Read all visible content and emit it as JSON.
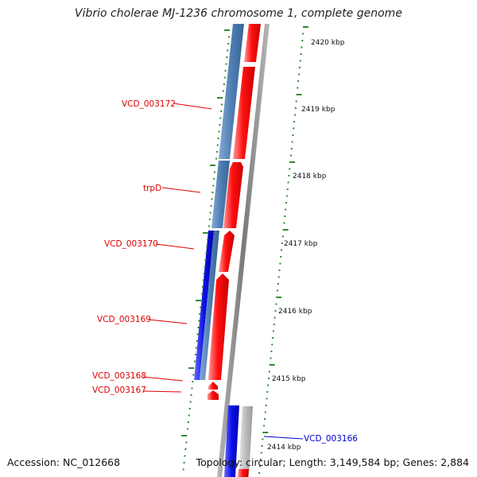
{
  "title": "Vibrio cholerae MJ-1236 chromosome 1, complete genome",
  "footer": {
    "accession": "Accession: NC_012668",
    "summary": "Topology: circular; Length: 3,149,584 bp; Genes: 2,884"
  },
  "scale_labels": [
    "2420 kbp",
    "2419 kbp",
    "2418 kbp",
    "2417 kbp",
    "2416 kbp",
    "2415 kbp",
    "2414 kbp"
  ],
  "gene_labels": [
    {
      "text": "VCD_003172",
      "color": "#e00000"
    },
    {
      "text": "trpD",
      "color": "#e00000"
    },
    {
      "text": "VCD_003170",
      "color": "#e00000"
    },
    {
      "text": "VCD_003169",
      "color": "#e00000"
    },
    {
      "text": "VCD_003168",
      "color": "#e00000"
    },
    {
      "text": "VCD_003167",
      "color": "#e00000"
    },
    {
      "text": "VCD_003166",
      "color": "#0000cc"
    }
  ],
  "colors": {
    "forward_gene": "#ff1010",
    "reverse_gene_light": "#4f7fb4",
    "reverse_gene_dark": "#0a10e8",
    "backbone": "#909090",
    "tick": "#2e8b2e",
    "gray_feature": "#bdbdbd"
  }
}
